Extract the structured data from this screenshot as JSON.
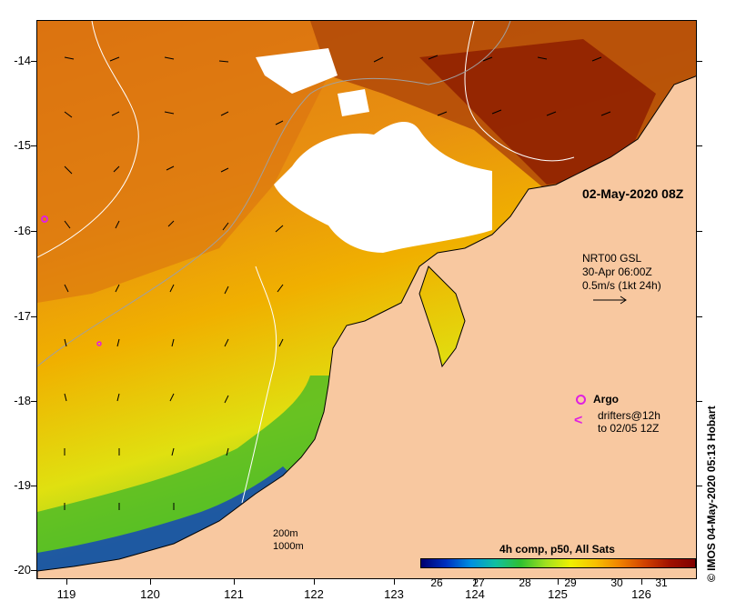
{
  "map": {
    "y_ticks": [
      "-14",
      "-15",
      "-16",
      "-17",
      "-18",
      "-19",
      "-20"
    ],
    "x_ticks": [
      "119",
      "120",
      "121",
      "122",
      "123",
      "124",
      "125",
      "126"
    ]
  },
  "time_label": "02-May-2020 08Z",
  "vector_legend": {
    "line1": "NRT00 GSL",
    "line2": "30-Apr 06:00Z",
    "line3": "0.5m/s (1kt 24h)"
  },
  "argo_legend": {
    "label": "Argo"
  },
  "drifter_legend": {
    "line1": "drifters@12h",
    "line2": "to 02/05 12Z"
  },
  "depth_legend": {
    "line1": "200m",
    "line2": "1000m"
  },
  "colorbar": {
    "title": "4h comp, p50, All Sats",
    "ticks": [
      "26",
      "27",
      "28",
      "29",
      "30",
      "31"
    ]
  },
  "credit": "© IMOS 04-May-2020 05:13 Hobart",
  "colors": {
    "land": "#f8c8a0",
    "argo": "#e020e0",
    "drifter": "#e020e0"
  }
}
